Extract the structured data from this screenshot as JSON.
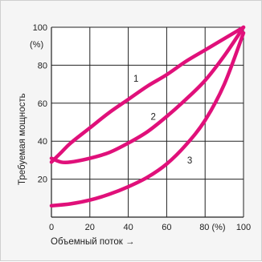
{
  "chart_data": {
    "type": "line",
    "xlabel": "Объемный поток →",
    "ylabel": "Требуемая мощность",
    "xlim": [
      0,
      100
    ],
    "ylim": [
      0,
      100
    ],
    "x_ticks": [
      {
        "value": 0,
        "label": "0"
      },
      {
        "value": 20,
        "label": "20"
      },
      {
        "value": 40,
        "label": "40"
      },
      {
        "value": 60,
        "label": "60"
      },
      {
        "value": 80,
        "label": "80 (%)"
      },
      {
        "value": 100,
        "label": "100"
      }
    ],
    "y_ticks": [
      {
        "value": 20,
        "label": "20"
      },
      {
        "value": 40,
        "label": "40"
      },
      {
        "value": 60,
        "label": "60"
      },
      {
        "value": 80,
        "label": "80"
      },
      {
        "value": 100,
        "label": "100"
      }
    ],
    "y_unit": "(%)",
    "grid": true,
    "line_color": "#e0107a",
    "series": [
      {
        "label": "1",
        "x": [
          0,
          5,
          10,
          20,
          30,
          40,
          50,
          60,
          70,
          80,
          90,
          100
        ],
        "y": [
          29,
          34,
          39,
          47,
          55,
          62,
          69,
          75,
          82,
          88,
          94,
          100
        ],
        "label_at": [
          44,
          73
        ]
      },
      {
        "label": "2",
        "x": [
          0,
          5,
          10,
          20,
          30,
          40,
          50,
          60,
          70,
          80,
          90,
          100
        ],
        "y": [
          31,
          29,
          29,
          31,
          34,
          39,
          45,
          53,
          62,
          72,
          85,
          100
        ],
        "label_at": [
          53,
          53
        ]
      },
      {
        "label": "3",
        "x": [
          0,
          10,
          20,
          30,
          40,
          50,
          60,
          70,
          80,
          90,
          100
        ],
        "y": [
          6,
          7,
          9,
          12,
          16,
          21,
          28,
          38,
          51,
          70,
          97
        ],
        "label_at": [
          72,
          30
        ]
      }
    ]
  }
}
